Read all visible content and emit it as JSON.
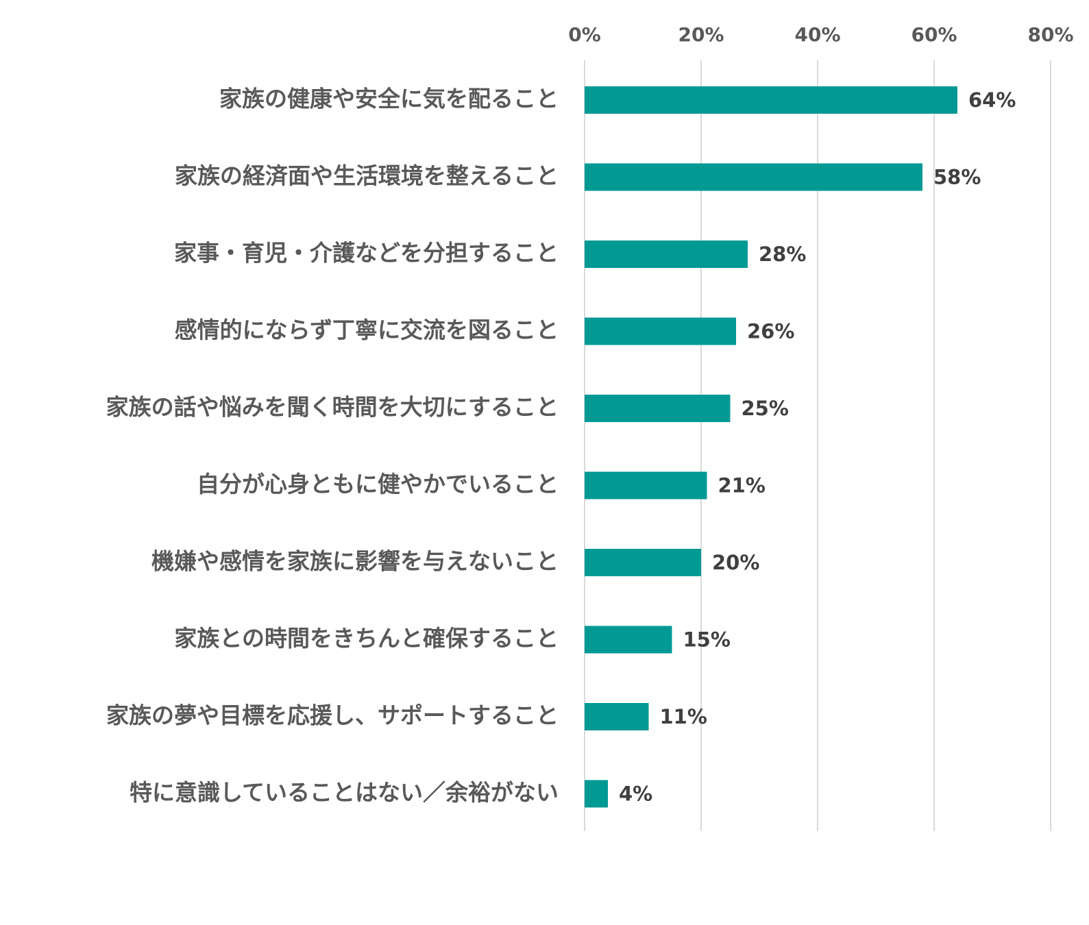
{
  "chart_data": {
    "type": "bar",
    "orientation": "horizontal",
    "title": "",
    "xlabel": "",
    "ylabel": "",
    "xlim": [
      0,
      80
    ],
    "x_ticks": [
      "0%",
      "20%",
      "40%",
      "60%",
      "80%"
    ],
    "x_tick_values": [
      0,
      20,
      40,
      60,
      80
    ],
    "grid": true,
    "legend": "none",
    "bar_color": "#009994",
    "categories": [
      "家族の健康や安全に気を配ること",
      "家族の経済面や生活環境を整えること",
      "家事・育児・介護などを分担すること",
      "感情的にならず丁寧に交流を図ること",
      "家族の話や悩みを聞く時間を大切にすること",
      "自分が心身ともに健やかでいること",
      "機嫌や感情を家族に影響を与えないこと",
      "家族との時間をきちんと確保すること",
      "家族の夢や目標を応援し、サポートすること",
      "特に意識していることはない／余裕がない"
    ],
    "values": [
      64,
      58,
      28,
      26,
      25,
      21,
      20,
      15,
      11,
      4
    ],
    "value_labels": [
      "64%",
      "58%",
      "28%",
      "26%",
      "25%",
      "21%",
      "20%",
      "15%",
      "11%",
      "4%"
    ]
  }
}
